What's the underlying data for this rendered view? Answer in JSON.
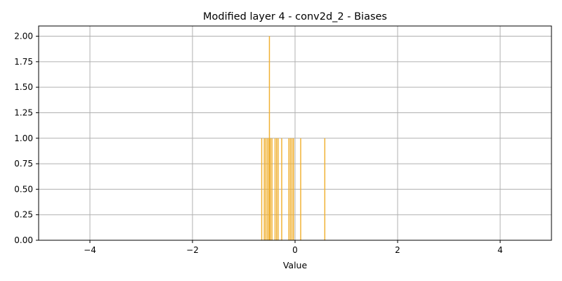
{
  "chart_data": {
    "type": "bar",
    "title": "Modified layer 4 - conv2d_2 - Biases",
    "xlabel": "Value",
    "ylabel": "",
    "xlim": [
      -5,
      5
    ],
    "ylim": [
      0,
      2.1
    ],
    "xticks": [
      -4,
      -2,
      0,
      2,
      4
    ],
    "xtick_labels": [
      "−4",
      "−2",
      "0",
      "2",
      "4"
    ],
    "yticks": [
      0,
      0.25,
      0.5,
      0.75,
      1.0,
      1.25,
      1.5,
      1.75,
      2.0
    ],
    "ytick_labels": [
      "0.00",
      "0.25",
      "0.50",
      "0.75",
      "1.00",
      "1.25",
      "1.50",
      "1.75",
      "2.00"
    ],
    "grid": true,
    "bar_color": "#f0b030",
    "bar_width": 0.02,
    "bars": [
      {
        "x": -0.65,
        "value": 1
      },
      {
        "x": -0.6,
        "value": 1
      },
      {
        "x": -0.57,
        "value": 1
      },
      {
        "x": -0.54,
        "value": 1
      },
      {
        "x": -0.51,
        "value": 1
      },
      {
        "x": -0.5,
        "value": 2
      },
      {
        "x": -0.48,
        "value": 1
      },
      {
        "x": -0.45,
        "value": 1
      },
      {
        "x": -0.39,
        "value": 1
      },
      {
        "x": -0.36,
        "value": 1
      },
      {
        "x": -0.33,
        "value": 1
      },
      {
        "x": -0.26,
        "value": 1
      },
      {
        "x": -0.12,
        "value": 1
      },
      {
        "x": -0.09,
        "value": 1
      },
      {
        "x": -0.06,
        "value": 1
      },
      {
        "x": -0.03,
        "value": 1
      },
      {
        "x": 0.11,
        "value": 1
      },
      {
        "x": 0.58,
        "value": 1
      }
    ]
  }
}
